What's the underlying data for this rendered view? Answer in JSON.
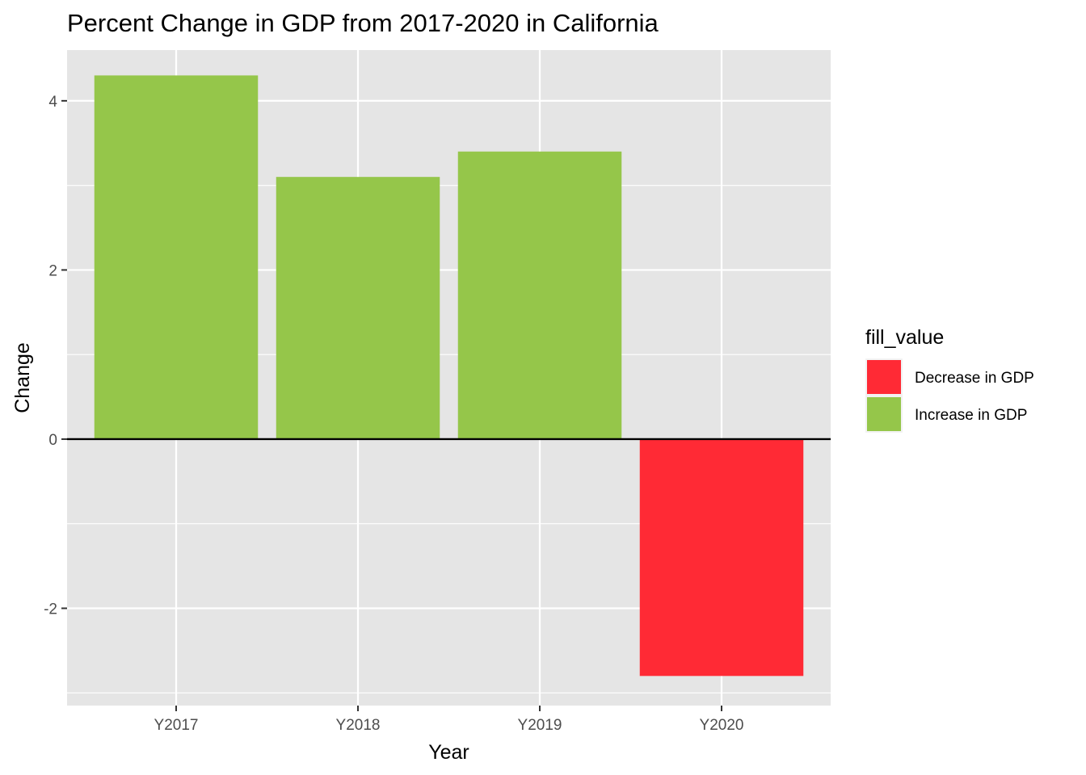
{
  "chart_data": {
    "type": "bar",
    "title": "Percent Change in GDP from 2017-2020 in California",
    "xlabel": "Year",
    "ylabel": "Change",
    "categories": [
      "Y2017",
      "Y2018",
      "Y2019",
      "Y2020"
    ],
    "values": [
      4.3,
      3.1,
      3.4,
      -2.8
    ],
    "fill_value": [
      "Increase in GDP",
      "Increase in GDP",
      "Increase in GDP",
      "Decrease in GDP"
    ],
    "ylim": [
      -3.15,
      4.6
    ],
    "yticks": [
      -2,
      0,
      2,
      4
    ],
    "ytick_labels": [
      "-2",
      "0",
      "2",
      "4"
    ],
    "ygrid_minor": [
      -3,
      -1,
      1,
      3
    ],
    "zero_line": true,
    "grid": true,
    "panel_background": "#e5e5e5",
    "legend": {
      "title": "fill_value",
      "position": "right",
      "entries": [
        {
          "label": "Decrease in GDP",
          "color": "#ff2a35"
        },
        {
          "label": "Increase in GDP",
          "color": "#95c64a"
        }
      ]
    }
  }
}
